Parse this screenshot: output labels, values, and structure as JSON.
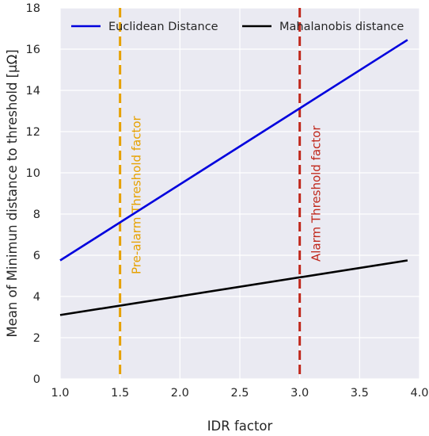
{
  "chart_data": {
    "type": "line",
    "xlabel": "IDR factor",
    "ylabel": "Mean of Minimun distance to threshold [μΩ]",
    "xlim": [
      1.0,
      4.0
    ],
    "ylim": [
      0,
      18
    ],
    "x_ticks": [
      "1.0",
      "1.5",
      "2.0",
      "2.5",
      "3.0",
      "3.5",
      "4.0"
    ],
    "y_ticks": [
      "0",
      "2",
      "4",
      "6",
      "8",
      "10",
      "12",
      "14",
      "16",
      "18"
    ],
    "grid": true,
    "legend_position": "top",
    "series": [
      {
        "name": "Euclidean Distance",
        "color": "#0000dd",
        "x": [
          1.0,
          3.9
        ],
        "y": [
          5.75,
          16.45
        ]
      },
      {
        "name": "Mahalanobis distance",
        "color": "#000000",
        "x": [
          1.0,
          3.9
        ],
        "y": [
          3.1,
          5.75
        ]
      }
    ],
    "vlines": [
      {
        "x": 1.5,
        "label": "Pre-alarm Threshold factor",
        "color": "#e6a100"
      },
      {
        "x": 3.0,
        "label": "Alarm Threshold factor",
        "color": "#c0281c"
      }
    ],
    "colors": {
      "background": "#eaeaf2",
      "grid": "#ffffff"
    }
  }
}
